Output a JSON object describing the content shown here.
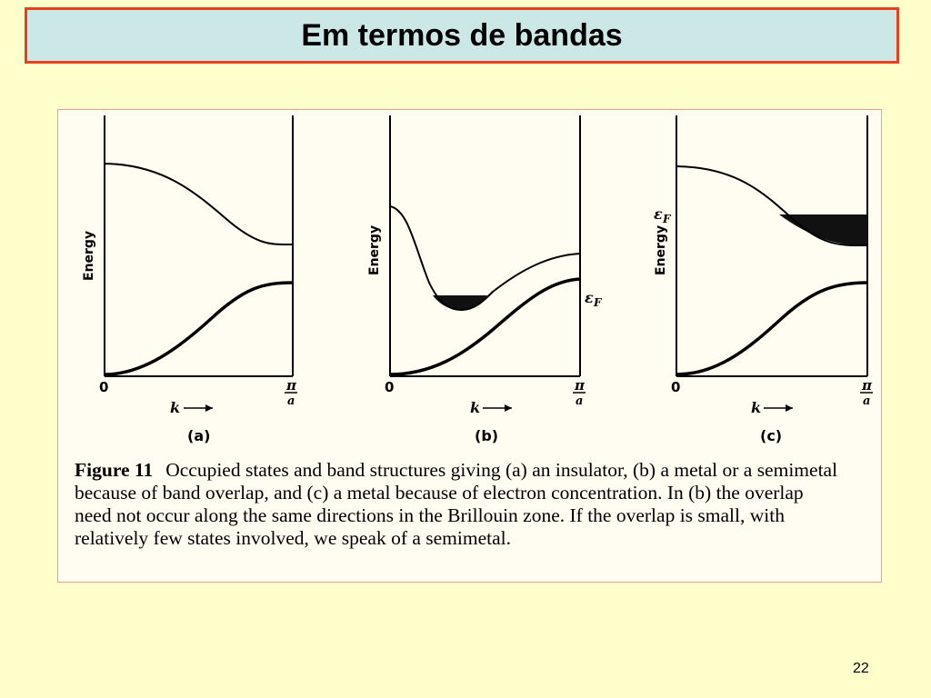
{
  "slide": {
    "title": "Em termos de bandas",
    "page_number": "22"
  },
  "colors": {
    "background": "#ffffcc",
    "title_fill": "#cce8e6",
    "title_border": "#e8401c"
  },
  "figure": {
    "panels": [
      {
        "label": "(a)",
        "y_axis": "Energy",
        "origin": "0",
        "x_axis": "k",
        "end_num": "π",
        "end_den": "a",
        "fermi": ""
      },
      {
        "label": "(b)",
        "y_axis": "Energy",
        "origin": "0",
        "x_axis": "k",
        "end_num": "π",
        "end_den": "a",
        "fermi": "ε",
        "fermi_sub": "F"
      },
      {
        "label": "(c)",
        "y_axis": "Energy",
        "origin": "0",
        "x_axis": "k",
        "end_num": "π",
        "end_den": "a",
        "fermi": "ε",
        "fermi_sub": "F"
      }
    ],
    "caption_label": "Figure 11",
    "caption_text": "Occupied states and band structures giving (a) an insulator, (b) a metal or a semimetal because of band overlap, and (c) a metal because of electron concentration. In (b) the overlap need not occur along the same directions in the Brillouin zone. If the overlap is small, with relatively few states involved, we speak of a semimetal."
  }
}
